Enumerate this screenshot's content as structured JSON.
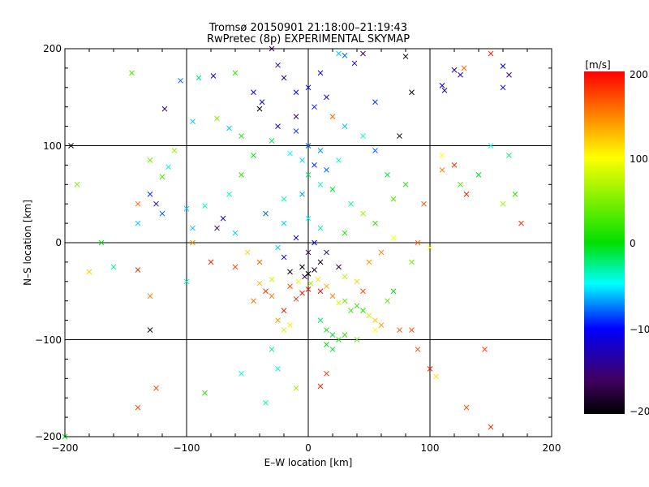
{
  "chart_data": {
    "type": "scatter",
    "title": "Tromsø 20150901 21:18:00–21:19:43",
    "subtitle": "RwPretec (8p) EXPERIMENTAL SKYMAP",
    "xlabel": "E–W location [km]",
    "ylabel": "N–S location [km]",
    "xlim": [
      -200,
      200
    ],
    "ylim": [
      -200,
      200
    ],
    "xticks": [
      "−200",
      "−100",
      "0",
      "100",
      "200"
    ],
    "yticks": [
      "200",
      "100",
      "0",
      "−100",
      "−200"
    ],
    "grid": true,
    "colorbar": {
      "label": "[m/s]",
      "range": [
        -200,
        200
      ],
      "ticks": [
        "200",
        "100",
        "0",
        "−100",
        "−200"
      ]
    },
    "marker_types": [
      "cross",
      "dot"
    ],
    "points": [
      [
        -145,
        175,
        30,
        "x"
      ],
      [
        -105,
        167,
        -80,
        "x"
      ],
      [
        -90,
        170,
        -20,
        "x"
      ],
      [
        -78,
        172,
        -120,
        "x"
      ],
      [
        -60,
        175,
        20,
        "x"
      ],
      [
        -30,
        200,
        -150,
        "x"
      ],
      [
        -25,
        183,
        -130,
        "x"
      ],
      [
        -20,
        170,
        -140,
        "x"
      ],
      [
        10,
        175,
        -110,
        "x"
      ],
      [
        -118,
        138,
        -140,
        "x"
      ],
      [
        -45,
        155,
        -100,
        "x"
      ],
      [
        -38,
        145,
        -110,
        "x"
      ],
      [
        -40,
        138,
        -200,
        "x"
      ],
      [
        -95,
        125,
        -60,
        "x"
      ],
      [
        -75,
        128,
        50,
        "x"
      ],
      [
        -65,
        118,
        -60,
        "x"
      ],
      [
        -55,
        110,
        10,
        "x"
      ],
      [
        25,
        195,
        -60,
        "x"
      ],
      [
        30,
        193,
        -80,
        "x"
      ],
      [
        45,
        195,
        -150,
        "x"
      ],
      [
        80,
        192,
        -200,
        "x"
      ],
      [
        38,
        185,
        -120,
        "x"
      ],
      [
        120,
        178,
        -120,
        "x"
      ],
      [
        125,
        173,
        -130,
        "x"
      ],
      [
        128,
        180,
        160,
        "x"
      ],
      [
        150,
        195,
        190,
        "x"
      ],
      [
        160,
        182,
        -110,
        "x"
      ],
      [
        165,
        173,
        -140,
        "x"
      ],
      [
        160,
        160,
        -110,
        "x"
      ],
      [
        55,
        145,
        -90,
        "x"
      ],
      [
        -10,
        155,
        -100,
        "x"
      ],
      [
        0,
        160,
        -110,
        "x"
      ],
      [
        5,
        140,
        -95,
        "x"
      ],
      [
        15,
        150,
        -120,
        "x"
      ],
      [
        20,
        130,
        160,
        "x"
      ],
      [
        -10,
        130,
        -150,
        "x"
      ],
      [
        85,
        155,
        -200,
        "x"
      ],
      [
        110,
        162,
        -110,
        "x"
      ],
      [
        112,
        157,
        -120,
        "x"
      ],
      [
        75,
        110,
        -200,
        "x"
      ],
      [
        -195,
        100,
        -200,
        "x"
      ],
      [
        -130,
        85,
        40,
        "x"
      ],
      [
        -110,
        95,
        60,
        "x"
      ],
      [
        -115,
        78,
        -40,
        "x"
      ],
      [
        -120,
        68,
        30,
        "x"
      ],
      [
        -130,
        50,
        -90,
        "x"
      ],
      [
        -140,
        40,
        160,
        "x"
      ],
      [
        -125,
        40,
        -120,
        "x"
      ],
      [
        -140,
        20,
        -60,
        "x"
      ],
      [
        -120,
        30,
        -80,
        "x"
      ],
      [
        -100,
        35,
        -60,
        "x"
      ],
      [
        -85,
        38,
        -40,
        "x"
      ],
      [
        -70,
        25,
        -130,
        "x"
      ],
      [
        -95,
        15,
        -60,
        "x"
      ],
      [
        -75,
        15,
        -150,
        "x"
      ],
      [
        -60,
        10,
        -60,
        "x"
      ],
      [
        -95,
        0,
        150,
        "x"
      ],
      [
        -80,
        -20,
        190,
        "x"
      ],
      [
        -140,
        -28,
        180,
        "x"
      ],
      [
        -130,
        -55,
        150,
        "x"
      ],
      [
        -100,
        -40,
        -40,
        "x"
      ],
      [
        -130,
        -90,
        -200,
        "x"
      ],
      [
        110,
        90,
        100,
        "x"
      ],
      [
        120,
        80,
        180,
        "x"
      ],
      [
        110,
        75,
        150,
        "x"
      ],
      [
        125,
        60,
        30,
        "x"
      ],
      [
        150,
        100,
        -50,
        "x"
      ],
      [
        165,
        90,
        -20,
        "x"
      ],
      [
        140,
        70,
        -10,
        "x"
      ],
      [
        130,
        50,
        190,
        "x"
      ],
      [
        160,
        40,
        60,
        "x"
      ],
      [
        90,
        0,
        160,
        "x"
      ],
      [
        100,
        -5,
        100,
        "x"
      ],
      [
        85,
        -20,
        50,
        "x"
      ],
      [
        -5,
        85,
        -60,
        "x"
      ],
      [
        5,
        80,
        -90,
        "x"
      ],
      [
        15,
        75,
        -80,
        "x"
      ],
      [
        25,
        85,
        -40,
        "x"
      ],
      [
        0,
        70,
        -20,
        "x"
      ],
      [
        10,
        60,
        -40,
        "x"
      ],
      [
        -5,
        50,
        -70,
        "x"
      ],
      [
        20,
        55,
        -10,
        "x"
      ],
      [
        -20,
        45,
        -40,
        "x"
      ],
      [
        35,
        40,
        -30,
        "x"
      ],
      [
        45,
        30,
        60,
        "x"
      ],
      [
        55,
        20,
        20,
        "x"
      ],
      [
        -35,
        30,
        -80,
        "x"
      ],
      [
        -20,
        20,
        -60,
        "x"
      ],
      [
        0,
        25,
        -50,
        "x"
      ],
      [
        10,
        15,
        -30,
        "x"
      ],
      [
        30,
        10,
        10,
        "x"
      ],
      [
        -10,
        5,
        -120,
        "x"
      ],
      [
        5,
        0,
        -100,
        "x"
      ],
      [
        -25,
        -5,
        -60,
        "x"
      ],
      [
        0,
        -10,
        -150,
        "x"
      ],
      [
        10,
        -20,
        -190,
        "x"
      ],
      [
        -5,
        -25,
        -200,
        "x"
      ],
      [
        5,
        -28,
        -180,
        "x"
      ],
      [
        0,
        -32,
        -200,
        "x"
      ],
      [
        -3,
        -35,
        -170,
        "x"
      ],
      [
        8,
        -38,
        110,
        "x"
      ],
      [
        -8,
        -40,
        90,
        "x"
      ],
      [
        2,
        -42,
        60,
        "x"
      ],
      [
        15,
        -45,
        130,
        "x"
      ],
      [
        -15,
        -45,
        170,
        "x"
      ],
      [
        0,
        -48,
        190,
        "x"
      ],
      [
        10,
        -50,
        200,
        "x"
      ],
      [
        -5,
        -52,
        190,
        "x"
      ],
      [
        20,
        -55,
        150,
        "x"
      ],
      [
        -10,
        -58,
        180,
        "x"
      ],
      [
        25,
        -62,
        90,
        "x"
      ],
      [
        30,
        -60,
        40,
        "x"
      ],
      [
        40,
        -65,
        20,
        "x"
      ],
      [
        45,
        -70,
        10,
        "x"
      ],
      [
        35,
        -70,
        30,
        "x"
      ],
      [
        50,
        -75,
        80,
        "x"
      ],
      [
        55,
        -80,
        120,
        "x"
      ],
      [
        60,
        -85,
        140,
        "x"
      ],
      [
        55,
        -90,
        100,
        "x"
      ],
      [
        -25,
        -80,
        140,
        "x"
      ],
      [
        -15,
        -85,
        110,
        "x"
      ],
      [
        -20,
        -90,
        80,
        "x"
      ],
      [
        10,
        -80,
        -20,
        "x"
      ],
      [
        15,
        -90,
        0,
        "x"
      ],
      [
        20,
        -95,
        -10,
        "x"
      ],
      [
        25,
        -100,
        10,
        "x"
      ],
      [
        30,
        -95,
        20,
        "x"
      ],
      [
        40,
        -100,
        40,
        "x"
      ],
      [
        15,
        -105,
        0,
        "x"
      ],
      [
        20,
        -110,
        -10,
        "x"
      ],
      [
        -30,
        -55,
        150,
        "x"
      ],
      [
        -35,
        -50,
        180,
        "x"
      ],
      [
        -20,
        -70,
        190,
        "x"
      ],
      [
        75,
        -90,
        170,
        "x"
      ],
      [
        85,
        -90,
        170,
        "x"
      ],
      [
        90,
        -110,
        170,
        "x"
      ],
      [
        -10,
        -150,
        60,
        "x"
      ],
      [
        -25,
        -130,
        -40,
        "x"
      ],
      [
        -30,
        -110,
        -30,
        "x"
      ],
      [
        15,
        -135,
        180,
        "x"
      ],
      [
        10,
        -148,
        190,
        "x"
      ],
      [
        -55,
        -135,
        -40,
        "x"
      ],
      [
        -35,
        -165,
        -30,
        "x"
      ],
      [
        -85,
        -155,
        20,
        "x"
      ],
      [
        -140,
        -170,
        170,
        "x"
      ],
      [
        -125,
        -150,
        170,
        "x"
      ],
      [
        -200,
        -200,
        0,
        "x"
      ],
      [
        100,
        -130,
        190,
        "x"
      ],
      [
        105,
        -138,
        110,
        "x"
      ],
      [
        145,
        -110,
        180,
        "x"
      ],
      [
        130,
        -170,
        170,
        "x"
      ],
      [
        150,
        -190,
        190,
        "x"
      ],
      [
        50,
        -20,
        140,
        "x"
      ],
      [
        60,
        -10,
        150,
        "x"
      ],
      [
        70,
        5,
        100,
        "x"
      ],
      [
        -50,
        -10,
        120,
        "x"
      ],
      [
        -40,
        -20,
        160,
        "x"
      ],
      [
        -60,
        -25,
        170,
        "x"
      ],
      [
        80,
        60,
        10,
        "x"
      ],
      [
        95,
        40,
        170,
        "x"
      ],
      [
        -170,
        0,
        0,
        "x"
      ],
      [
        -160,
        -25,
        -30,
        "x"
      ],
      [
        70,
        -50,
        0,
        "x"
      ],
      [
        65,
        -60,
        30,
        "x"
      ],
      [
        170,
        50,
        20,
        "x"
      ],
      [
        175,
        20,
        180,
        "x"
      ],
      [
        -180,
        -30,
        120,
        "x"
      ],
      [
        -190,
        60,
        50,
        "x"
      ],
      [
        -10,
        115,
        -90,
        "x"
      ],
      [
        30,
        120,
        -60,
        "x"
      ],
      [
        45,
        110,
        -40,
        "x"
      ],
      [
        -30,
        105,
        -20,
        "x"
      ],
      [
        -45,
        90,
        0,
        "x"
      ],
      [
        55,
        95,
        -80,
        "x"
      ],
      [
        -55,
        70,
        20,
        "x"
      ],
      [
        65,
        70,
        -10,
        "x"
      ],
      [
        -65,
        50,
        -40,
        "x"
      ],
      [
        70,
        45,
        30,
        "x"
      ],
      [
        -20,
        -15,
        -100,
        "x"
      ],
      [
        15,
        -10,
        -130,
        "x"
      ],
      [
        25,
        -25,
        -160,
        "x"
      ],
      [
        -15,
        -30,
        -190,
        "x"
      ],
      [
        30,
        -35,
        70,
        "x"
      ],
      [
        -30,
        -38,
        80,
        "x"
      ],
      [
        40,
        -40,
        120,
        "x"
      ],
      [
        -40,
        -42,
        130,
        "x"
      ],
      [
        45,
        -50,
        170,
        "x"
      ],
      [
        -45,
        -60,
        160,
        "x"
      ],
      [
        0,
        100,
        -80,
        "x"
      ],
      [
        10,
        95,
        -70,
        "x"
      ],
      [
        -15,
        92,
        -50,
        "x"
      ],
      [
        -25,
        120,
        -130,
        "x"
      ]
    ]
  }
}
